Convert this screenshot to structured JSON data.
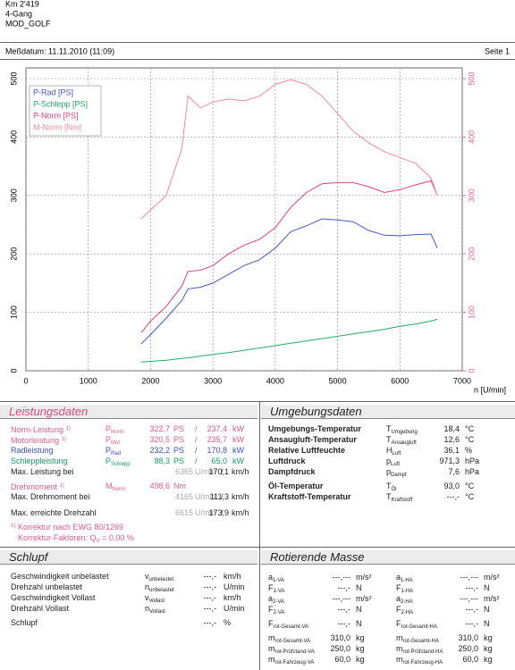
{
  "header": {
    "lines": [
      "Km 2'419",
      "4-Gang",
      "MOD_GOLF"
    ],
    "date": "Meßdatum: 11.11.2010 (11:09)",
    "page": "Seite 1"
  },
  "chart_data": {
    "type": "line",
    "xlabel": "n [U/min]",
    "x": [
      1850,
      2000,
      2250,
      2500,
      2600,
      2800,
      3000,
      3250,
      3500,
      3750,
      4000,
      4250,
      4500,
      4750,
      5000,
      5250,
      5500,
      5750,
      6000,
      6250,
      6500,
      6600
    ],
    "xlim": [
      0,
      7000
    ],
    "xticks": [
      0,
      1000,
      2000,
      3000,
      4000,
      5000,
      6000,
      7000
    ],
    "ylim": [
      0,
      500
    ],
    "yticks": [
      0,
      100,
      200,
      300,
      400,
      500
    ],
    "y2lim": [
      0,
      500
    ],
    "y2ticks": [
      0,
      100,
      200,
      300,
      400,
      500
    ],
    "grid": true,
    "legend": "upper left",
    "series": [
      {
        "name": "P-Rad [PS]",
        "color": "#4455cc",
        "values": [
          46,
          62,
          90,
          120,
          140,
          143,
          150,
          165,
          180,
          190,
          210,
          238,
          248,
          260,
          258,
          255,
          240,
          232,
          231,
          233,
          234,
          210
        ]
      },
      {
        "name": "P-Schlepp [PS]",
        "color": "#22aa66",
        "values": [
          15,
          16,
          18,
          21,
          22,
          25,
          28,
          31,
          35,
          39,
          43,
          47,
          51,
          55,
          59,
          63,
          67,
          71,
          76,
          80,
          85,
          88
        ]
      },
      {
        "name": "P-Norm [PS]",
        "color": "#e0407a",
        "values": [
          65,
          85,
          110,
          145,
          170,
          172,
          180,
          200,
          215,
          225,
          245,
          280,
          305,
          320,
          322,
          322,
          315,
          305,
          310,
          318,
          325,
          300
        ]
      },
      {
        "name": "M-Norm [Nm]",
        "color": "#f08aa0",
        "axis": "y2",
        "values": [
          260,
          275,
          300,
          380,
          470,
          450,
          460,
          465,
          462,
          470,
          490,
          498,
          490,
          470,
          440,
          410,
          390,
          375,
          365,
          355,
          330,
          300
        ]
      }
    ]
  },
  "leistungsdaten": {
    "title": "Leistungsdaten",
    "rows": [
      {
        "label": "Norm-Leistung",
        "note": "1)",
        "sym": {
          "t": "P",
          "sub": "Norm"
        },
        "v1": "322,7",
        "u1": "PS",
        "sep": "/",
        "v2": "237,4",
        "u2": "kW"
      },
      {
        "label": "Motorleistung",
        "note": "1)",
        "sym": {
          "t": "P",
          "sub": "Mot"
        },
        "v1": "320,5",
        "u1": "PS",
        "sep": "/",
        "v2": "235,7",
        "u2": "kW"
      },
      {
        "label": "Radleistung",
        "sym": {
          "t": "P",
          "sub": "Rad"
        },
        "v1": "232,2",
        "u1": "PS",
        "sep": "/",
        "v2": "170,8",
        "u2": "kW"
      },
      {
        "label": "Schleppleistung",
        "sym": {
          "t": "P",
          "sub": "Schlepp"
        },
        "v1": "88,3",
        "u1": "PS",
        "sep": "/",
        "v2": "65,0",
        "u2": "kW"
      },
      {
        "label": "Max. Leistung bei",
        "v1": "6365",
        "u1": "U/min",
        "sep": "/",
        "v2": "170,1",
        "u2": "km/h"
      },
      {
        "label": "Drehmoment",
        "note": "1)",
        "sym": {
          "t": "M",
          "sub": "Norm"
        },
        "v1": "498,6",
        "u1": "Nm"
      },
      {
        "label": "Max. Drehmoment bei",
        "v1": "4165",
        "u1": "U/min",
        "sep": "/",
        "v2": "111,3",
        "u2": "km/h"
      },
      {
        "label": "Max. erreichte Drehzahl",
        "v1": "6615",
        "u1": "U/min",
        "sep": "/",
        "v2": "173,9",
        "u2": "km/h"
      }
    ],
    "footnote": {
      "note": "1)",
      "text": "Korrektur nach EWG 80/1269",
      "pre": "Korrektur-Faktoren: Q",
      "sub": "V",
      "post": "=  0,00 %"
    }
  },
  "umgebungsdaten": {
    "title": "Umgebungsdaten",
    "rows": [
      {
        "label": "Umgebungs-Temperatur",
        "sym": {
          "t": "T",
          "sub": "Umgebung"
        },
        "v": "18,4",
        "u": "°C"
      },
      {
        "label": "Ansaugluft-Temperatur",
        "sym": {
          "t": "T",
          "sub": "Ansaugluft"
        },
        "v": "12,6",
        "u": "°C"
      },
      {
        "label": "Relative Luftfeuchte",
        "sym": {
          "t": "H",
          "sub": "Luft"
        },
        "v": "36,1",
        "u": "%"
      },
      {
        "label": "Luftdruck",
        "sym": {
          "t": "p",
          "sub": "Luft"
        },
        "v": "971,3",
        "u": "hPa"
      },
      {
        "label": "Dampfdruck",
        "sym": {
          "t": "p",
          "sub": "Dampf"
        },
        "v": "7,6",
        "u": "hPa"
      },
      {
        "label": "Öl-Temperatur",
        "sym": {
          "t": "T",
          "sub": "Öl"
        },
        "v": "93,0",
        "u": "°C"
      },
      {
        "label": "Kraftstoff-Temperatur",
        "sym": {
          "t": "T",
          "sub": "Kraftstoff"
        },
        "v": "---,-",
        "u": "°C"
      }
    ]
  },
  "schlupf": {
    "title": "Schlupf",
    "rows": [
      {
        "label": "Geschwindigkeit unbelastet",
        "sym": {
          "t": "v",
          "sub": "unbelastet"
        },
        "v": "---,-",
        "u": "km/h"
      },
      {
        "label": "Drehzahl unbelastet",
        "sym": {
          "t": "n",
          "sub": "unbelastet"
        },
        "v": "---,-",
        "u": "U/min"
      },
      {
        "label": "Geschwindigkeit Vollast",
        "sym": {
          "t": "v",
          "sub": "Vollast"
        },
        "v": "---,-",
        "u": "km/h"
      },
      {
        "label": "Drehzahl Vollast",
        "sym": {
          "t": "n",
          "sub": "Vollast"
        },
        "v": "---,-",
        "u": "U/min"
      },
      {
        "label": "Schlupf",
        "v": "---,-",
        "u": "%"
      }
    ]
  },
  "rotierende_masse": {
    "title": "Rotierende Masse",
    "rows": [
      [
        {
          "sym": {
            "t": "a",
            "sub": "1-VA"
          },
          "v": "---,---",
          "u": "m/s²"
        },
        {
          "sym": {
            "t": "a",
            "sub": "1-HA"
          },
          "v": "---,---",
          "u": "m/s²"
        }
      ],
      [
        {
          "sym": {
            "t": "F",
            "sub": "1-VA"
          },
          "v": "---,-",
          "u": "N"
        },
        {
          "sym": {
            "t": "F",
            "sub": "1-HA"
          },
          "v": "---,-",
          "u": "N"
        }
      ],
      [
        {
          "sym": {
            "t": "a",
            "sub": "2-VA"
          },
          "v": "---,---",
          "u": "m/s²"
        },
        {
          "sym": {
            "t": "a",
            "sub": "2-HA"
          },
          "v": "---,---",
          "u": "m/s²"
        }
      ],
      [
        {
          "sym": {
            "t": "F",
            "sub": "2-VA"
          },
          "v": "---,-",
          "u": "N"
        },
        {
          "sym": {
            "t": "F",
            "sub": "2-HA"
          },
          "v": "---,-",
          "u": "N"
        }
      ],
      [
        {
          "sym": {
            "t": "F",
            "sub": "rot-Gesamt-VA"
          },
          "v": "---,-",
          "u": "N"
        },
        {
          "sym": {
            "t": "F",
            "sub": "rot-Gesamt-HA"
          },
          "v": "---,-",
          "u": "N"
        }
      ],
      [
        {
          "sym": {
            "t": "m",
            "sub": "rot-Gesamt-VA"
          },
          "v": "310,0",
          "u": "kg"
        },
        {
          "sym": {
            "t": "m",
            "sub": "rot-Gesamt-HA"
          },
          "v": "310,0",
          "u": "kg"
        }
      ],
      [
        {
          "sym": {
            "t": "m",
            "sub": "rot-Prüfstand-VA"
          },
          "v": "250,0",
          "u": "kg"
        },
        {
          "sym": {
            "t": "m",
            "sub": "rot-Prüfstand-HA"
          },
          "v": "250,0",
          "u": "kg"
        }
      ],
      [
        {
          "sym": {
            "t": "m",
            "sub": "rot-Fahrzeug-VA"
          },
          "v": "60,0",
          "u": "kg"
        },
        {
          "sym": {
            "t": "m",
            "sub": "rot-Fahrzeug-HA"
          },
          "v": "60,0",
          "u": "kg"
        }
      ]
    ]
  }
}
